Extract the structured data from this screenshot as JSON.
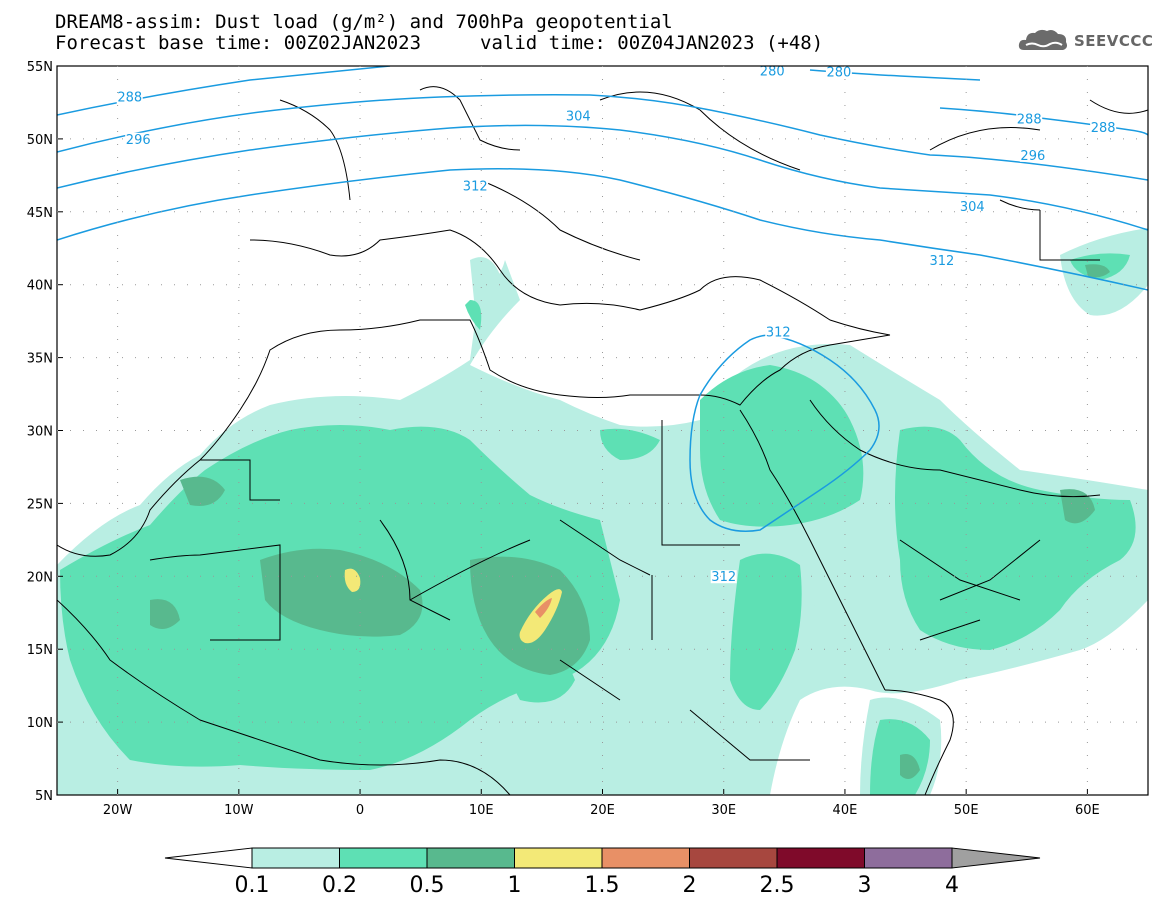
{
  "header": {
    "title_line1": "DREAM8-assim: Dust load (g/m²) and 700hPa geopotential",
    "title_line2_left": "Forecast base time: 00Z02JAN2023",
    "title_line2_right": "valid time: 00Z04JAN2023 (+48)",
    "logo_text": "SEEVCCC",
    "logo_icon": "cloud-icon"
  },
  "map": {
    "lon_range": [
      -25,
      65
    ],
    "lat_range": [
      5,
      55
    ],
    "lat_ticks": [
      {
        "value": 55,
        "label": "55N"
      },
      {
        "value": 50,
        "label": "50N"
      },
      {
        "value": 45,
        "label": "45N"
      },
      {
        "value": 40,
        "label": "40N"
      },
      {
        "value": 35,
        "label": "35N"
      },
      {
        "value": 30,
        "label": "30N"
      },
      {
        "value": 25,
        "label": "25N"
      },
      {
        "value": 20,
        "label": "20N"
      },
      {
        "value": 15,
        "label": "15N"
      },
      {
        "value": 10,
        "label": "10N"
      },
      {
        "value": 5,
        "label": "5N"
      }
    ],
    "lon_ticks": [
      {
        "value": -20,
        "label": "20W"
      },
      {
        "value": -10,
        "label": "10W"
      },
      {
        "value": 0,
        "label": "0"
      },
      {
        "value": 10,
        "label": "10E"
      },
      {
        "value": 20,
        "label": "20E"
      },
      {
        "value": 30,
        "label": "30E"
      },
      {
        "value": 40,
        "label": "40E"
      },
      {
        "value": 50,
        "label": "50E"
      },
      {
        "value": 60,
        "label": "60E"
      }
    ],
    "contour_color": "#1a9be0",
    "contour_labels": [
      {
        "text": "288",
        "lon": -19.0,
        "lat": 52.7
      },
      {
        "text": "296",
        "lon": -18.3,
        "lat": 49.8
      },
      {
        "text": "304",
        "lon": 18.0,
        "lat": 51.4
      },
      {
        "text": "312",
        "lon": 9.5,
        "lat": 46.6
      },
      {
        "text": "280",
        "lon": 34.0,
        "lat": 54.5
      },
      {
        "text": "280",
        "lon": 39.5,
        "lat": 54.4
      },
      {
        "text": "288",
        "lon": 55.2,
        "lat": 51.2
      },
      {
        "text": "288",
        "lon": 61.3,
        "lat": 50.6
      },
      {
        "text": "296",
        "lon": 55.5,
        "lat": 48.7
      },
      {
        "text": "304",
        "lon": 50.5,
        "lat": 45.2
      },
      {
        "text": "312",
        "lon": 48.0,
        "lat": 41.5
      },
      {
        "text": "312",
        "lon": 34.5,
        "lat": 36.6
      },
      {
        "text": "312",
        "lon": 30.0,
        "lat": 19.8
      }
    ]
  },
  "colorbar": {
    "colors": [
      "#b9eee3",
      "#5ee0b4",
      "#58b98e",
      "#f3e977",
      "#e89066",
      "#a7473f",
      "#7f0a2a",
      "#8e6d9c",
      "#a0a0a0"
    ],
    "under_color": "#ffffff",
    "labels": [
      "0.1",
      "0.2",
      "0.5",
      "1",
      "1.5",
      "2",
      "2.5",
      "3",
      "4"
    ]
  }
}
